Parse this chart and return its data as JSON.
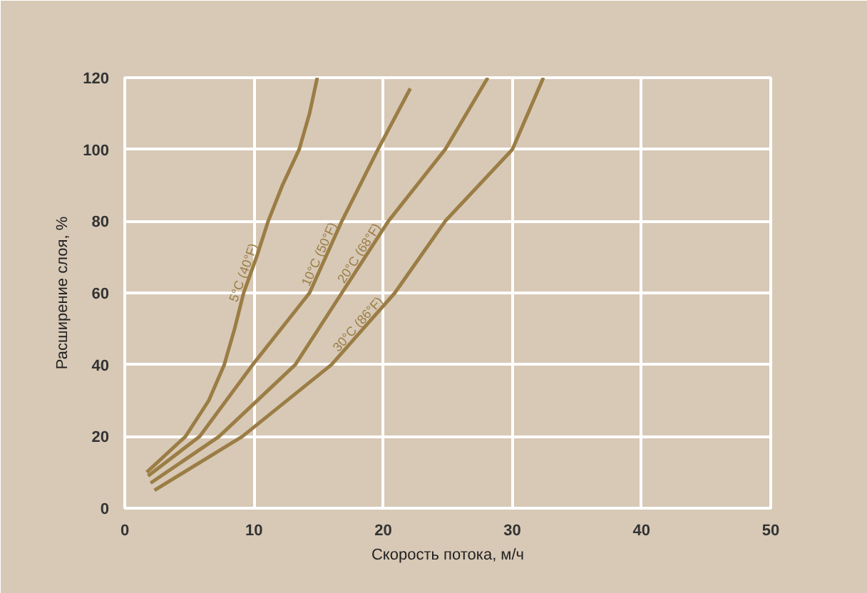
{
  "chart_data": {
    "type": "line",
    "xlabel": "Скорость потока, м/ч",
    "ylabel": "Расширение слоя, %",
    "xlim": [
      0,
      50
    ],
    "ylim": [
      0,
      120
    ],
    "xticks": [
      0,
      10,
      20,
      30,
      40,
      50
    ],
    "yticks": [
      0,
      20,
      40,
      60,
      80,
      100,
      120
    ],
    "grid": true,
    "series": [
      {
        "name": "5°C (40°F)",
        "color": "#9b7d45",
        "x": [
          1.7,
          4.7,
          6.5,
          7.7,
          8.5,
          9.2,
          10.2,
          11.1,
          12.2,
          13.5,
          14.3,
          14.9
        ],
        "values": [
          10,
          20,
          30,
          40,
          50,
          60,
          70,
          80,
          90,
          100,
          110,
          120
        ]
      },
      {
        "name": "10°C (50°F)",
        "color": "#9b7d45",
        "x": [
          1.8,
          5.8,
          9.9,
          14.3,
          16.8,
          19.6,
          22.1
        ],
        "values": [
          9,
          20,
          40,
          60,
          80,
          100,
          117
        ]
      },
      {
        "name": "20°C (68°F)",
        "color": "#9b7d45",
        "x": [
          2.0,
          7.3,
          13.2,
          16.8,
          20.4,
          24.8,
          28.1
        ],
        "values": [
          7,
          20,
          40,
          60,
          80,
          100,
          120
        ]
      },
      {
        "name": "30°C (86°F)",
        "color": "#9b7d45",
        "x": [
          2.3,
          9.1,
          16.0,
          20.9,
          24.8,
          30.0,
          32.4
        ],
        "values": [
          5,
          20,
          40,
          60,
          80,
          100,
          120
        ]
      }
    ]
  }
}
